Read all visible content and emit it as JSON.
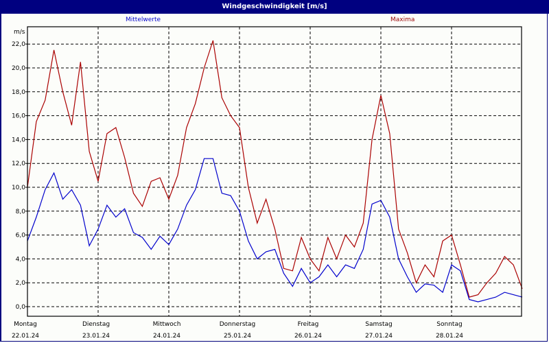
{
  "window": {
    "title": "Windgeschwindigkeit [m/s]"
  },
  "legend": {
    "mean_label": "Mittelwerte",
    "max_label": "Maxima",
    "mean_color": "#0000cc",
    "max_color": "#aa0000"
  },
  "axis": {
    "y_unit": "m/s",
    "y_ticks": [
      "0,0",
      "2,0",
      "4,0",
      "6,0",
      "8,0",
      "10,0",
      "12,0",
      "14,0",
      "16,0",
      "18,0",
      "20,0",
      "22,0"
    ],
    "x_days": [
      {
        "day": "Montag",
        "date": "22.01.24"
      },
      {
        "day": "Dienstag",
        "date": "23.01.24"
      },
      {
        "day": "Mittwoch",
        "date": "24.01.24"
      },
      {
        "day": "Donnerstag",
        "date": "25.01.24"
      },
      {
        "day": "Freitag",
        "date": "26.01.24"
      },
      {
        "day": "Samstag",
        "date": "27.01.24"
      },
      {
        "day": "Sonntag",
        "date": "28.01.24"
      }
    ]
  },
  "chart_data": {
    "type": "line",
    "title": "Windgeschwindigkeit [m/s]",
    "xlabel": "",
    "ylabel": "m/s",
    "ylim": [
      -0.7,
      23.5
    ],
    "xlim_days": [
      0,
      7
    ],
    "grid": true,
    "legend": [
      "Mittelwerte",
      "Maxima"
    ],
    "categories": [
      "Montag 22.01.24",
      "Dienstag 23.01.24",
      "Mittwoch 24.01.24",
      "Donnerstag 25.01.24",
      "Freitag 26.01.24",
      "Samstag 27.01.24",
      "Sonntag 28.01.24"
    ],
    "x_hours": [
      0,
      3,
      6,
      9,
      12,
      15,
      18,
      21,
      24,
      27,
      30,
      33,
      36,
      39,
      42,
      45,
      48,
      51,
      54,
      57,
      60,
      63,
      66,
      69,
      72,
      75,
      78,
      81,
      84,
      87,
      90,
      93,
      96,
      99,
      102,
      105,
      108,
      111,
      114,
      117,
      120,
      123,
      126,
      129,
      132,
      135,
      138,
      141,
      144,
      147,
      150,
      153,
      156,
      159,
      162,
      165,
      168
    ],
    "series": [
      {
        "name": "Mittelwerte",
        "color": "#0000cc",
        "values": [
          5.5,
          7.5,
          9.8,
          11.2,
          9.0,
          9.8,
          8.5,
          5.1,
          6.5,
          8.5,
          7.5,
          8.2,
          6.2,
          5.8,
          4.8,
          5.9,
          5.2,
          6.5,
          8.5,
          9.8,
          12.4,
          12.4,
          9.5,
          9.3,
          8.0,
          5.5,
          4.0,
          4.6,
          4.8,
          2.8,
          1.7,
          3.2,
          2.0,
          2.5,
          3.5,
          2.5,
          3.5,
          3.2,
          4.8,
          8.6,
          8.9,
          7.5,
          4.0,
          2.5,
          1.2,
          1.9,
          1.8,
          1.2,
          3.5,
          3.0,
          0.6,
          0.4,
          0.6,
          0.8,
          1.2,
          1.0,
          0.8
        ]
      },
      {
        "name": "Maxima",
        "color": "#aa0000",
        "values": [
          10.0,
          15.5,
          17.3,
          21.5,
          18.0,
          15.2,
          20.5,
          13.0,
          10.5,
          14.5,
          15.0,
          12.5,
          9.5,
          8.4,
          10.5,
          10.8,
          9.0,
          11.0,
          15.0,
          17.0,
          20.0,
          22.3,
          17.5,
          16.0,
          15.0,
          10.0,
          7.0,
          9.0,
          6.5,
          3.2,
          3.0,
          5.8,
          4.0,
          3.0,
          5.8,
          4.0,
          6.0,
          5.0,
          7.0,
          14.0,
          17.7,
          14.5,
          6.5,
          4.5,
          2.0,
          3.5,
          2.5,
          5.5,
          6.0,
          3.5,
          0.8,
          1.0,
          2.0,
          2.8,
          4.2,
          3.5,
          1.5
        ]
      }
    ]
  }
}
